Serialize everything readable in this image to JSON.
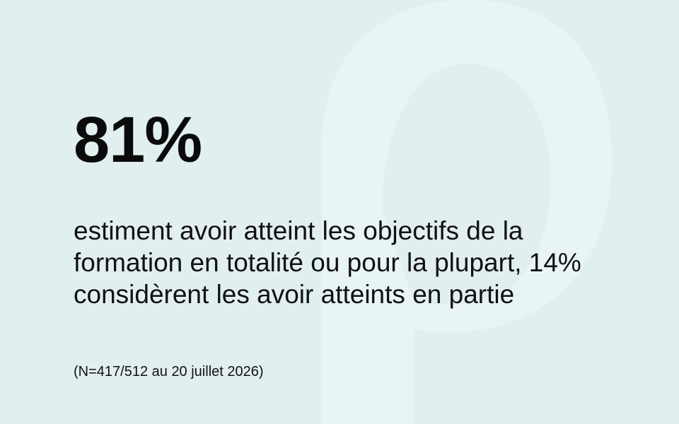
{
  "stat": {
    "value": "81%",
    "description": "estiment avoir atteint les objectifs de la formation en totalité ou pour la plupart, 14% considèrent les avoir atteints en partie",
    "note": "(N=417/512 au 20 juillet 2026)"
  },
  "colors": {
    "background": "#e2eff0",
    "watermark": "#e9f4f4",
    "text": "#0b0b0b"
  },
  "icons": {
    "watermark": "letter-p-watermark-icon"
  }
}
